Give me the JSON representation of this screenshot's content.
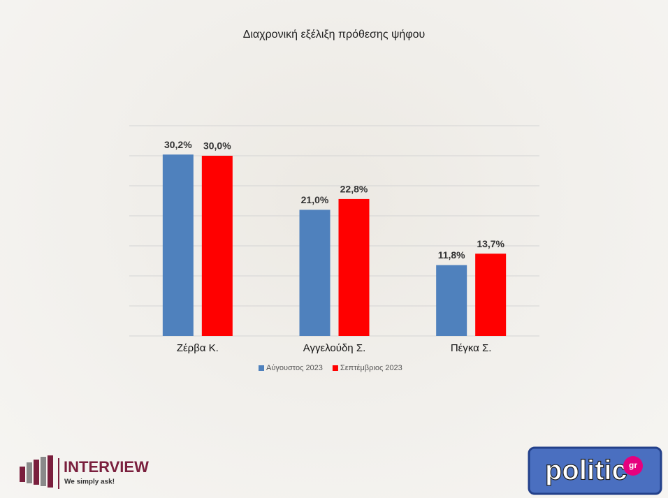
{
  "chart_data": {
    "type": "bar",
    "title": "Διαχρονική εξέλιξη πρόθεσης ψήφου",
    "categories": [
      "Ζέρβα Κ.",
      "Αγγελούδη Σ.",
      "Πέγκα Σ."
    ],
    "series": [
      {
        "name": "Αύγουστος 2023",
        "color": "#4f81bd",
        "values": [
          30.2,
          21.0,
          11.8
        ],
        "value_labels": [
          "30,2%",
          "21,0%",
          "11,8%"
        ]
      },
      {
        "name": "Σεπτέμβριος 2023",
        "color": "#ff0000",
        "values": [
          30.0,
          22.8,
          13.7
        ],
        "value_labels": [
          "30,0%",
          "22,8%",
          "13,7%"
        ]
      }
    ],
    "ylim": [
      0,
      35
    ],
    "yticks": [
      0,
      5,
      10,
      15,
      20,
      25,
      30,
      35
    ],
    "grid": true,
    "legend": "bottom"
  },
  "branding": {
    "left": "INTERVIEW",
    "left_tagline": "We simply ask!",
    "right": "politic",
    "right_suffix": "gr"
  }
}
